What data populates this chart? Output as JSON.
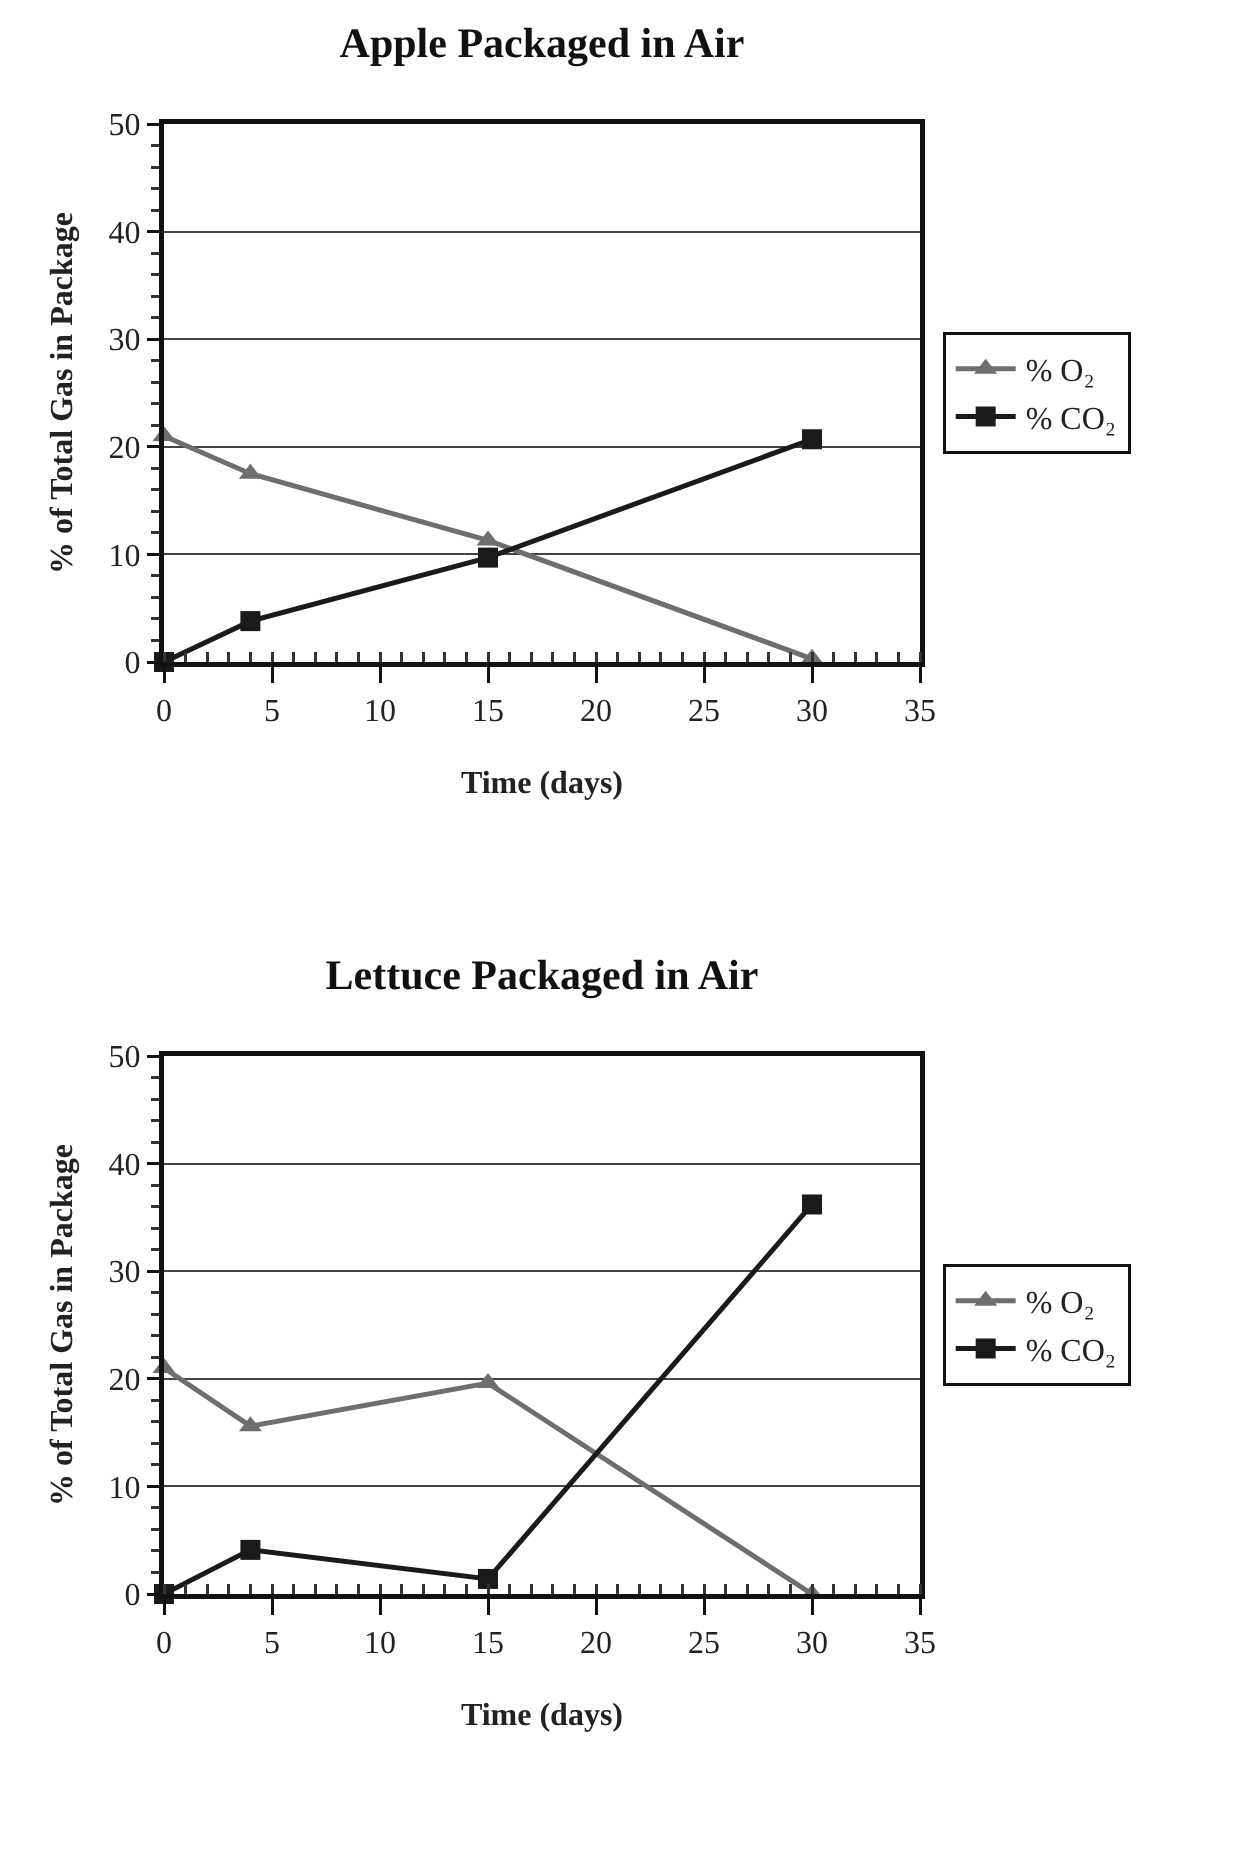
{
  "chart_data": [
    {
      "type": "line",
      "title": "Apple Packaged in Air",
      "xlabel": "Time (days)",
      "ylabel": "% of Total Gas in Package",
      "x": [
        0,
        4,
        15,
        30
      ],
      "xlim": [
        0,
        35
      ],
      "xticks": [
        0,
        5,
        10,
        15,
        20,
        25,
        30,
        35
      ],
      "ylim": [
        0,
        50
      ],
      "yticks": [
        0,
        10,
        20,
        30,
        40,
        50
      ],
      "grid": "y",
      "legend": "right",
      "series": [
        {
          "name": "% O₂",
          "color": "#6e6e6e",
          "marker": "triangle",
          "values": [
            21,
            17.5,
            11.3,
            0.3
          ]
        },
        {
          "name": "% CO₂",
          "color": "#1a1a1a",
          "marker": "square",
          "values": [
            0,
            3.8,
            9.7,
            20.7
          ]
        }
      ]
    },
    {
      "type": "line",
      "title": "Lettuce Packaged in Air",
      "xlabel": "Time (days)",
      "ylabel": "% of Total Gas in Package",
      "x": [
        0,
        4,
        15,
        30
      ],
      "xlim": [
        0,
        35
      ],
      "xticks": [
        0,
        5,
        10,
        15,
        20,
        25,
        30,
        35
      ],
      "ylim": [
        0,
        50
      ],
      "yticks": [
        0,
        10,
        20,
        30,
        40,
        50
      ],
      "grid": "y",
      "legend": "right",
      "series": [
        {
          "name": "% O₂",
          "color": "#6e6e6e",
          "marker": "triangle",
          "values": [
            21,
            15.6,
            19.6,
            0
          ]
        },
        {
          "name": "% CO₂",
          "color": "#1a1a1a",
          "marker": "square",
          "values": [
            0,
            4.1,
            1.4,
            36.2
          ]
        }
      ]
    }
  ]
}
